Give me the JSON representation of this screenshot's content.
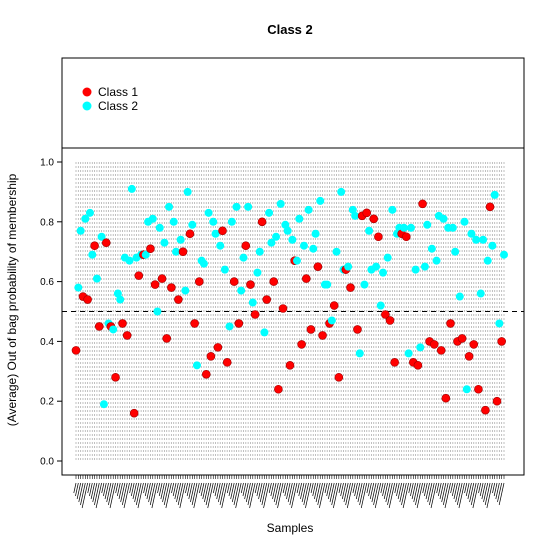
{
  "chart_data": {
    "type": "scatter",
    "title": "Class 2",
    "xlabel": "Samples",
    "ylabel": "(Average) Out of bag probability of membership",
    "ylim": [
      0,
      1
    ],
    "yticks": [
      0.0,
      0.2,
      0.4,
      0.6,
      0.8,
      1.0
    ],
    "ytick_labels": [
      "0.0",
      "0.2",
      "0.4",
      "0.6",
      "0.8",
      "1.0"
    ],
    "threshold": 0.5,
    "legend_position": "top-left",
    "colors": {
      "Class 1": "#ff0000",
      "Class 2": "#00ffff"
    },
    "series": [
      {
        "name": "Class 1",
        "color": "#ff0000",
        "values": [
          0.37,
          0.55,
          0.54,
          0.72,
          0.45,
          0.73,
          0.45,
          0.28,
          0.46,
          0.42,
          0.16,
          0.62,
          0.69,
          0.71,
          0.59,
          0.61,
          0.41,
          0.58,
          0.54,
          0.7,
          0.76,
          0.46,
          0.6,
          0.29,
          0.35,
          0.38,
          0.77,
          0.33,
          0.6,
          0.46,
          0.72,
          0.59,
          0.49,
          0.8,
          0.54,
          0.6,
          0.24,
          0.51,
          0.32,
          0.67,
          0.39,
          0.61,
          0.44,
          0.65,
          0.42,
          0.46,
          0.52,
          0.28,
          0.64,
          0.58,
          0.44,
          0.82,
          0.83,
          0.81,
          0.75,
          0.49,
          0.47,
          0.33,
          0.76,
          0.75,
          0.33,
          0.32,
          0.86,
          0.4,
          0.39,
          0.37,
          0.21,
          0.46,
          0.4,
          0.41,
          0.35,
          0.39,
          0.24,
          0.17,
          0.85,
          0.2,
          0.4
        ]
      },
      {
        "name": "Class 2",
        "color": "#00ffff",
        "values": [
          0.58,
          0.77,
          0.81,
          0.83,
          0.69,
          0.61,
          0.75,
          0.19,
          0.46,
          0.44,
          0.56,
          0.54,
          0.68,
          0.67,
          0.91,
          0.68,
          0.69,
          0.69,
          0.8,
          0.81,
          0.5,
          0.78,
          0.73,
          0.85,
          0.8,
          0.7,
          0.74,
          0.57,
          0.9,
          0.79,
          0.32,
          0.67,
          0.66,
          0.83,
          0.8,
          0.76,
          0.72,
          0.64,
          0.45,
          0.8,
          0.85,
          0.57,
          0.68,
          0.85,
          0.53,
          0.63,
          0.7,
          0.43,
          0.83,
          0.73,
          0.75,
          0.86,
          0.79,
          0.77,
          0.74,
          0.67,
          0.81,
          0.72,
          0.84,
          0.71,
          0.76,
          0.87,
          0.59,
          0.59,
          0.47,
          0.7,
          0.9,
          0.64,
          0.65,
          0.84,
          0.82,
          0.36,
          0.59,
          0.77,
          0.64,
          0.65,
          0.52,
          0.63,
          0.68,
          0.84,
          0.76,
          0.78,
          0.78,
          0.36,
          0.78,
          0.64,
          0.38,
          0.65,
          0.79,
          0.71,
          0.67,
          0.82,
          0.81,
          0.78,
          0.78,
          0.7,
          0.55,
          0.8,
          0.24,
          0.76,
          0.74,
          0.56,
          0.74,
          0.67,
          0.72,
          0.89,
          0.46,
          0.69
        ]
      }
    ]
  }
}
